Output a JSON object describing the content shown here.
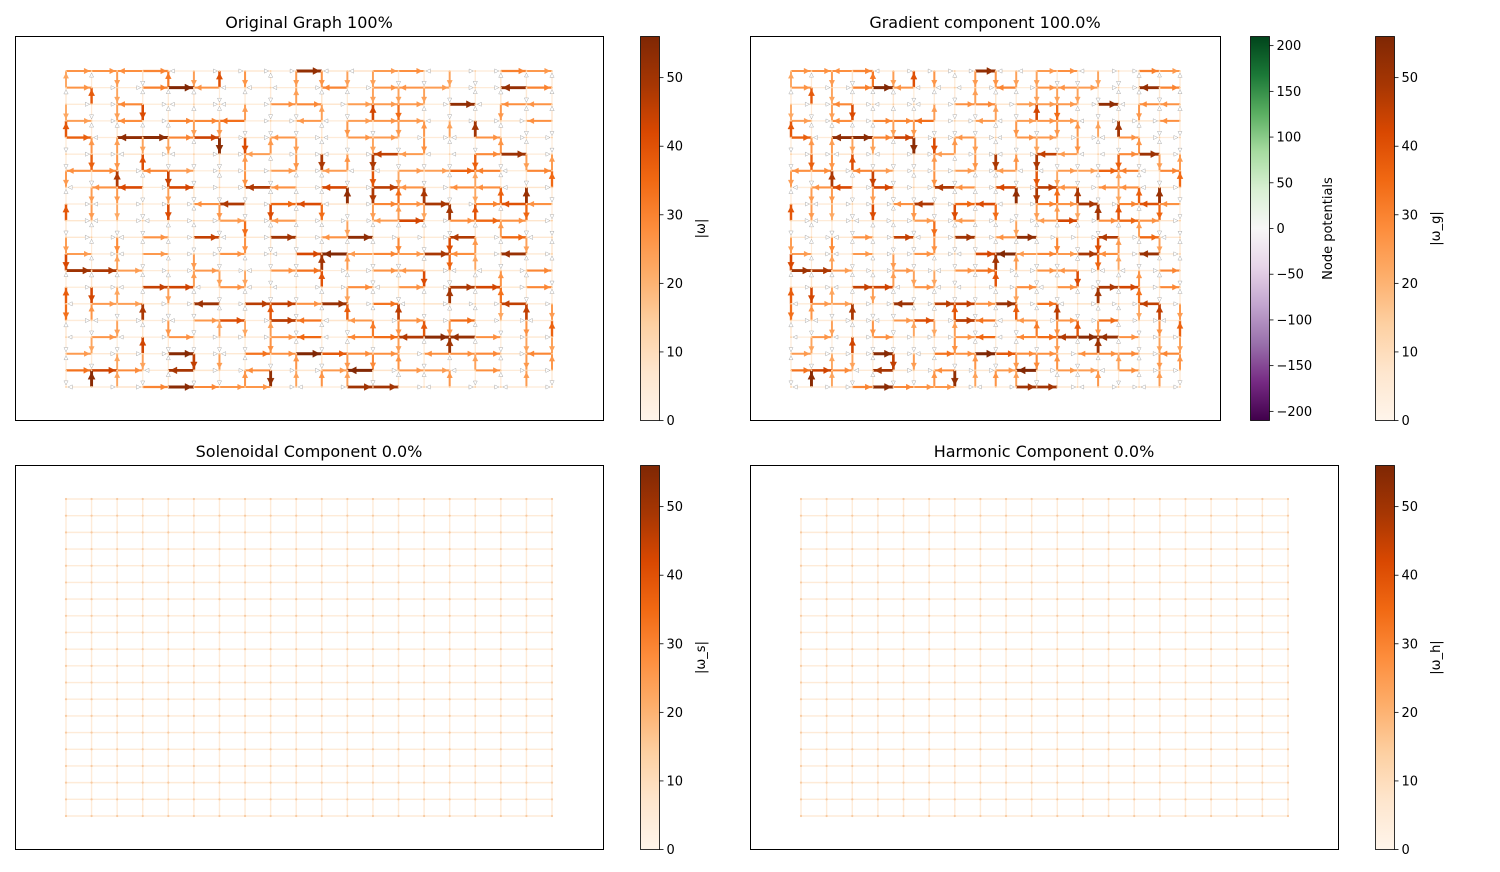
{
  "chart_data": [
    {
      "type": "graph",
      "title": "Original Graph 100%",
      "edge_weights": "omega",
      "colorbars": [
        {
          "label": "|ω|",
          "ylim": [
            0,
            56
          ],
          "ticks": [
            0,
            10,
            20,
            30,
            40,
            50
          ],
          "colormap": "Oranges"
        }
      ],
      "grid": {
        "columns": 20,
        "rows": 20
      }
    },
    {
      "type": "graph",
      "title": "Gradient component 100.0%",
      "edge_weights": "omega",
      "colorbars": [
        {
          "label": "Node potentials",
          "ylim": [
            -210,
            210
          ],
          "ticks": [
            -200,
            -150,
            -100,
            -50,
            0,
            50,
            100,
            150,
            200
          ],
          "colormap": "PRGn"
        },
        {
          "label": "|ω_g|",
          "ylim": [
            0,
            56
          ],
          "ticks": [
            0,
            10,
            20,
            30,
            40,
            50
          ],
          "colormap": "Oranges"
        }
      ],
      "grid": {
        "columns": 20,
        "rows": 20
      }
    },
    {
      "type": "graph",
      "title": "Solenoidal Component 0.0%",
      "edge_weights": "zero",
      "colorbars": [
        {
          "label": "|ω_s|",
          "ylim": [
            0,
            56
          ],
          "ticks": [
            0,
            10,
            20,
            30,
            40,
            50
          ],
          "colormap": "Oranges"
        }
      ],
      "grid": {
        "columns": 20,
        "rows": 20
      }
    },
    {
      "type": "graph",
      "title": "Harmonic Component 0.0%",
      "edge_weights": "zero",
      "colorbars": [
        {
          "label": "|ω_h|",
          "ylim": [
            0,
            56
          ],
          "ticks": [
            0,
            10,
            20,
            30,
            40,
            50
          ],
          "colormap": "Oranges"
        }
      ],
      "grid": {
        "columns": 20,
        "rows": 20
      }
    }
  ],
  "colors": {
    "oranges": [
      "#fff5eb",
      "#fee6ce",
      "#fdd0a2",
      "#fdae6b",
      "#fd8d3c",
      "#f16913",
      "#d94801",
      "#a63603",
      "#7f2704"
    ],
    "prgn": [
      "#40004b",
      "#762a83",
      "#9970ab",
      "#c2a5cf",
      "#e7d4e8",
      "#f7f7f7",
      "#d9f0d3",
      "#a6dba0",
      "#5aae61",
      "#1b7837",
      "#00441b"
    ],
    "frame": "#000000",
    "node": "#fdd0a2"
  }
}
